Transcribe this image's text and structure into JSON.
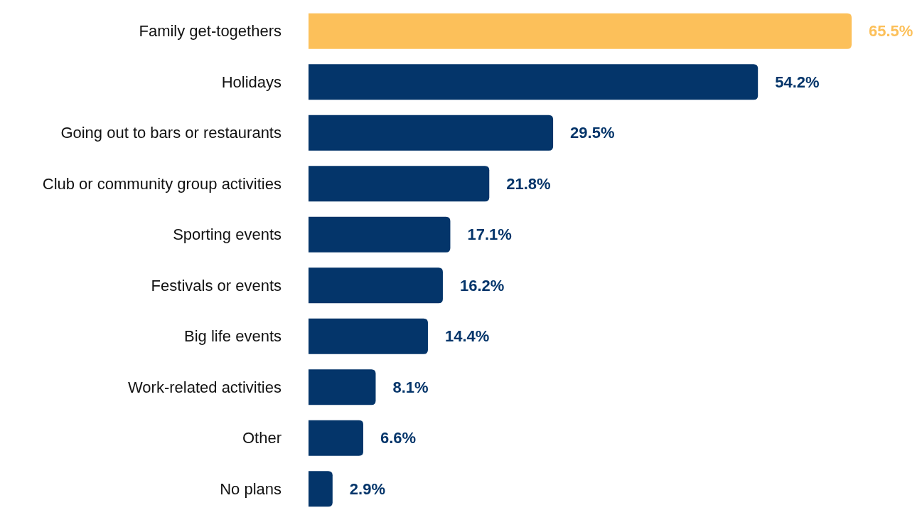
{
  "chart_data": {
    "type": "bar",
    "orientation": "horizontal",
    "categories": [
      "Family get-togethers",
      "Holidays",
      "Going out to bars or restaurants",
      "Club or community group activities",
      "Sporting events",
      "Festivals or events",
      "Big life events",
      "Work-related activities",
      "Other",
      "No plans"
    ],
    "values": [
      65.5,
      54.2,
      29.5,
      21.8,
      17.1,
      16.2,
      14.4,
      8.1,
      6.6,
      2.9
    ],
    "colors": [
      "#fcc05a",
      "#04356a",
      "#04356a",
      "#04356a",
      "#04356a",
      "#04356a",
      "#04356a",
      "#04356a",
      "#04356a",
      "#04356a"
    ],
    "value_labels": [
      "65.5%",
      "54.2%",
      "29.5%",
      "21.8%",
      "17.1%",
      "16.2%",
      "14.4%",
      "8.1%",
      "6.6%",
      "2.9%"
    ]
  }
}
